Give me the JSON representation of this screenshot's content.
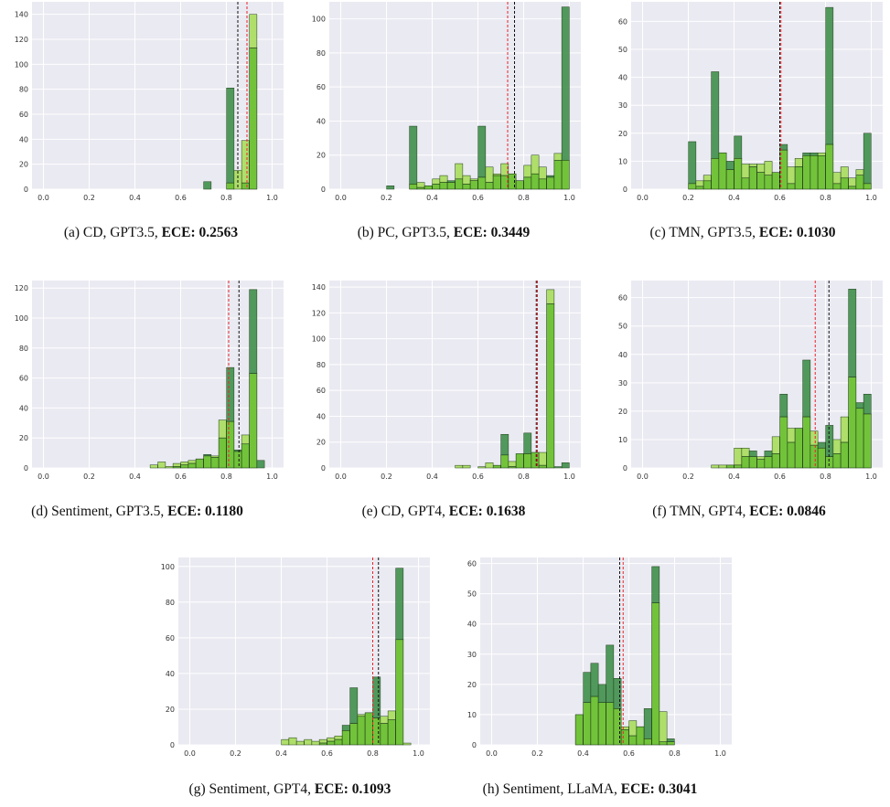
{
  "colors": {
    "plot_bg": "#eaeaf2",
    "grid": "#ffffff",
    "dark_bar": "#3f8f4a",
    "light_bar": "#a8dd5c",
    "overlap_bar": "#72c33a",
    "bar_edge": "#1f3b1a",
    "line_red": "#e8242b",
    "line_black": "#111111"
  },
  "chart_data": [
    {
      "type": "bar",
      "caption": "(a)  CD, GPT3.5,",
      "ece_label": "ECE: 0.2563",
      "xlim": [
        0,
        1
      ],
      "ylim": [
        0,
        150
      ],
      "xticks": [
        "0.0",
        "0.2",
        "0.4",
        "0.6",
        "0.8",
        "1.0"
      ],
      "yticks": [
        0,
        20,
        40,
        60,
        80,
        100,
        120,
        140
      ],
      "bin_width": 0.033,
      "series": [
        {
          "x": [
            0.717,
            0.817,
            0.883,
            0.917
          ],
          "values": [
            6,
            81,
            5,
            113
          ]
        },
        {
          "x": [
            0.817,
            0.85,
            0.883,
            0.917
          ],
          "values": [
            5,
            15,
            39,
            140
          ]
        }
      ],
      "vline_black": 0.85,
      "vline_red": 0.89
    },
    {
      "type": "bar",
      "caption": "(b)  PC, GPT3.5,",
      "ece_label": "ECE: 0.3449",
      "xlim": [
        0,
        1
      ],
      "ylim": [
        0,
        110
      ],
      "xticks": [
        "0.0",
        "0.2",
        "0.4",
        "0.6",
        "0.8",
        "1.0"
      ],
      "yticks": [
        0,
        20,
        40,
        60,
        80,
        100
      ],
      "bin_width": 0.033,
      "series": [
        {
          "x": [
            0.217,
            0.317,
            0.35,
            0.383,
            0.417,
            0.45,
            0.483,
            0.517,
            0.55,
            0.583,
            0.617,
            0.65,
            0.683,
            0.717,
            0.75,
            0.783,
            0.817,
            0.85,
            0.883,
            0.917,
            0.95,
            0.983
          ],
          "values": [
            2,
            37,
            1,
            2,
            3,
            4,
            5,
            6,
            3,
            5,
            37,
            4,
            8,
            8,
            9,
            5,
            7,
            9,
            6,
            8,
            17,
            107
          ]
        },
        {
          "x": [
            0.317,
            0.35,
            0.383,
            0.417,
            0.45,
            0.483,
            0.517,
            0.55,
            0.583,
            0.617,
            0.65,
            0.683,
            0.717,
            0.75,
            0.783,
            0.817,
            0.85,
            0.883,
            0.917,
            0.95,
            0.983
          ],
          "values": [
            3,
            4,
            2,
            6,
            8,
            4,
            15,
            8,
            6,
            7,
            13,
            9,
            15,
            9,
            5,
            14,
            20,
            13,
            7,
            21,
            17
          ]
        }
      ],
      "vline_black": 0.76,
      "vline_red": 0.73
    },
    {
      "type": "bar",
      "caption": "(c)  TMN, GPT3.5,",
      "ece_label": "ECE: 0.1030",
      "xlim": [
        0,
        1
      ],
      "ylim": [
        0,
        67
      ],
      "xticks": [
        "0.0",
        "0.2",
        "0.4",
        "0.6",
        "0.8",
        "1.0"
      ],
      "yticks": [
        0,
        10,
        20,
        30,
        40,
        50,
        60
      ],
      "bin_width": 0.033,
      "series": [
        {
          "x": [
            0.217,
            0.25,
            0.283,
            0.317,
            0.35,
            0.383,
            0.417,
            0.45,
            0.483,
            0.517,
            0.55,
            0.583,
            0.617,
            0.65,
            0.683,
            0.717,
            0.75,
            0.783,
            0.817,
            0.85,
            0.883,
            0.917,
            0.95,
            0.983
          ],
          "values": [
            17,
            1,
            3,
            42,
            13,
            10,
            19,
            4,
            8,
            6,
            5,
            6,
            16,
            2,
            8,
            13,
            13,
            12,
            65,
            2,
            4,
            1,
            5,
            20
          ]
        },
        {
          "x": [
            0.217,
            0.25,
            0.283,
            0.317,
            0.35,
            0.383,
            0.417,
            0.45,
            0.483,
            0.517,
            0.55,
            0.583,
            0.617,
            0.65,
            0.683,
            0.717,
            0.75,
            0.783,
            0.817,
            0.85,
            0.883,
            0.917,
            0.95,
            0.983
          ],
          "values": [
            2,
            3,
            5,
            11,
            13,
            7,
            11,
            9,
            9,
            9,
            10,
            6,
            14,
            8,
            11,
            12,
            12,
            13,
            16,
            6,
            8,
            4,
            7,
            2
          ]
        }
      ],
      "vline_black": 0.6,
      "vline_red": 0.605
    },
    {
      "type": "bar",
      "caption": "(d)  Sentiment, GPT3.5,",
      "ece_label": "ECE: 0.1180",
      "xlim": [
        0,
        1
      ],
      "ylim": [
        0,
        125
      ],
      "xticks": [
        "0.0",
        "0.2",
        "0.4",
        "0.6",
        "0.8",
        "1.0"
      ],
      "yticks": [
        0,
        20,
        40,
        60,
        80,
        100,
        120
      ],
      "bin_width": 0.033,
      "series": [
        {
          "x": [
            0.583,
            0.617,
            0.65,
            0.683,
            0.717,
            0.75,
            0.783,
            0.817,
            0.85,
            0.883,
            0.917,
            0.95
          ],
          "values": [
            1,
            2,
            3,
            6,
            9,
            7,
            20,
            67,
            12,
            16,
            119,
            5
          ]
        },
        {
          "x": [
            0.483,
            0.517,
            0.55,
            0.583,
            0.617,
            0.65,
            0.683,
            0.717,
            0.75,
            0.783,
            0.817,
            0.85,
            0.883,
            0.917
          ],
          "values": [
            2,
            4,
            1,
            3,
            4,
            5,
            6,
            8,
            8,
            32,
            31,
            11,
            22,
            63
          ]
        }
      ],
      "vline_black": 0.855,
      "vline_red": 0.81
    },
    {
      "type": "bar",
      "caption": "(e)  CD, GPT4,",
      "ece_label": "ECE: 0.1638",
      "xlim": [
        0,
        1
      ],
      "ylim": [
        0,
        145
      ],
      "xticks": [
        "0.0",
        "0.2",
        "0.4",
        "0.6",
        "0.8",
        "1.0"
      ],
      "yticks": [
        0,
        20,
        40,
        60,
        80,
        100,
        120,
        140
      ],
      "bin_width": 0.033,
      "series": [
        {
          "x": [
            0.683,
            0.717,
            0.75,
            0.783,
            0.817,
            0.85,
            0.883,
            0.917,
            0.95,
            0.983
          ],
          "values": [
            2,
            26,
            1,
            11,
            27,
            12,
            2,
            127,
            1,
            4
          ]
        },
        {
          "x": [
            0.517,
            0.55,
            0.617,
            0.65,
            0.683,
            0.717,
            0.75,
            0.783,
            0.817,
            0.85,
            0.883,
            0.917
          ],
          "values": [
            2,
            2,
            1,
            4,
            2,
            10,
            5,
            11,
            11,
            12,
            12,
            138
          ]
        }
      ],
      "vline_black": 0.855,
      "vline_red": 0.86
    },
    {
      "type": "bar",
      "caption": "(f)  TMN, GPT4,",
      "ece_label": "ECE: 0.0846",
      "xlim": [
        0,
        1
      ],
      "ylim": [
        0,
        66
      ],
      "xticks": [
        "0.0",
        "0.2",
        "0.4",
        "0.6",
        "0.8",
        "1.0"
      ],
      "yticks": [
        0,
        10,
        20,
        30,
        40,
        50,
        60
      ],
      "bin_width": 0.033,
      "series": [
        {
          "x": [
            0.383,
            0.417,
            0.45,
            0.483,
            0.517,
            0.55,
            0.583,
            0.617,
            0.65,
            0.683,
            0.717,
            0.75,
            0.783,
            0.817,
            0.85,
            0.883,
            0.917,
            0.95,
            0.983
          ],
          "values": [
            1,
            1,
            4,
            6,
            3,
            6,
            5,
            26,
            9,
            14,
            38,
            8,
            9,
            15,
            5,
            9,
            63,
            23,
            26
          ]
        },
        {
          "x": [
            0.317,
            0.35,
            0.383,
            0.417,
            0.45,
            0.483,
            0.517,
            0.55,
            0.583,
            0.617,
            0.65,
            0.683,
            0.717,
            0.75,
            0.783,
            0.817,
            0.85,
            0.883,
            0.917,
            0.95,
            0.983
          ],
          "values": [
            1,
            1,
            1,
            7,
            7,
            4,
            4,
            4,
            11,
            18,
            14,
            14,
            18,
            13,
            7,
            4,
            10,
            18,
            32,
            21,
            19
          ]
        }
      ],
      "vline_black": 0.815,
      "vline_red": 0.755
    },
    {
      "type": "bar",
      "caption": "(g)  Sentiment, GPT4,",
      "ece_label": "ECE: 0.1093",
      "xlim": [
        0,
        1
      ],
      "ylim": [
        0,
        105
      ],
      "xticks": [
        "0.0",
        "0.2",
        "0.4",
        "0.6",
        "0.8",
        "1.0"
      ],
      "yticks": [
        0,
        20,
        40,
        60,
        80,
        100
      ],
      "bin_width": 0.033,
      "series": [
        {
          "x": [
            0.583,
            0.617,
            0.65,
            0.683,
            0.717,
            0.75,
            0.783,
            0.817,
            0.85,
            0.883,
            0.917
          ],
          "values": [
            1,
            2,
            3,
            11,
            32,
            16,
            18,
            38,
            12,
            14,
            99
          ]
        },
        {
          "x": [
            0.417,
            0.45,
            0.483,
            0.517,
            0.55,
            0.583,
            0.617,
            0.65,
            0.683,
            0.717,
            0.75,
            0.783,
            0.817,
            0.85,
            0.883,
            0.917,
            0.95
          ],
          "values": [
            3,
            4,
            2,
            3,
            2,
            3,
            4,
            5,
            8,
            12,
            17,
            18,
            15,
            16,
            19,
            59,
            1
          ]
        }
      ],
      "vline_black": 0.825,
      "vline_red": 0.8
    },
    {
      "type": "bar",
      "caption": "(h)  Sentiment, LLaMA,",
      "ece_label": "ECE: 0.3041",
      "xlim": [
        0,
        1
      ],
      "ylim": [
        0,
        62
      ],
      "xticks": [
        "0.0",
        "0.2",
        "0.4",
        "0.6",
        "0.8",
        "1.0"
      ],
      "yticks": [
        0,
        10,
        20,
        30,
        40,
        50,
        60
      ],
      "bin_width": 0.033,
      "series": [
        {
          "x": [
            0.383,
            0.417,
            0.45,
            0.483,
            0.517,
            0.55,
            0.583,
            0.617,
            0.65,
            0.683,
            0.717,
            0.75,
            0.783
          ],
          "values": [
            10,
            24,
            27,
            20,
            33,
            22,
            5,
            3,
            6,
            12,
            59,
            1,
            2
          ]
        },
        {
          "x": [
            0.383,
            0.417,
            0.45,
            0.483,
            0.517,
            0.55,
            0.583,
            0.617,
            0.65,
            0.683,
            0.717,
            0.75,
            0.783
          ],
          "values": [
            10,
            14,
            16,
            14,
            14,
            12,
            6,
            8,
            6,
            2,
            47,
            11,
            1
          ]
        }
      ],
      "vline_black": 0.56,
      "vline_red": 0.575
    }
  ]
}
